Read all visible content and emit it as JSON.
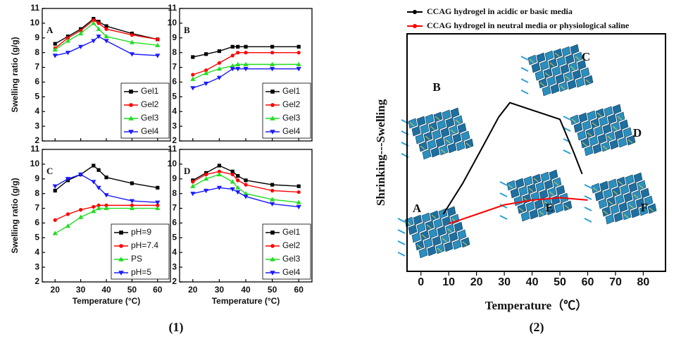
{
  "captions": [
    "(1)",
    "(2)"
  ],
  "chart_data": [
    {
      "type": "line",
      "panel_label": "A",
      "ylabel": "Swelling ratio (g/g)",
      "x": [
        20,
        25,
        30,
        35,
        37,
        40,
        50,
        60
      ],
      "xlim": [
        15,
        65
      ],
      "xticks": [
        20,
        30,
        40,
        50,
        60
      ],
      "xtick_labels": false,
      "ylim": [
        2,
        11
      ],
      "yticks": [
        2,
        3,
        4,
        5,
        6,
        7,
        8,
        9,
        10,
        11
      ],
      "legend": "lower right",
      "series": [
        {
          "name": "Gel1",
          "color": "#000000",
          "marker": "square",
          "values": [
            8.6,
            9.1,
            9.6,
            10.3,
            10.1,
            9.8,
            9.3,
            8.9
          ]
        },
        {
          "name": "Gel2",
          "color": "#ff0000",
          "marker": "circle",
          "values": [
            8.3,
            9.0,
            9.5,
            10.2,
            10.0,
            9.6,
            9.2,
            8.9
          ]
        },
        {
          "name": "Gel3",
          "color": "#22dd22",
          "marker": "triangle-up",
          "values": [
            8.2,
            8.8,
            9.3,
            10.0,
            9.6,
            9.1,
            8.7,
            8.5
          ]
        },
        {
          "name": "Gel4",
          "color": "#1a1aff",
          "marker": "triangle-down",
          "values": [
            7.8,
            8.0,
            8.4,
            8.8,
            9.1,
            8.8,
            7.9,
            7.8
          ]
        }
      ]
    },
    {
      "type": "line",
      "panel_label": "B",
      "x": [
        20,
        25,
        30,
        35,
        37,
        40,
        50,
        60
      ],
      "xlim": [
        15,
        65
      ],
      "xticks": [
        20,
        30,
        40,
        50,
        60
      ],
      "xtick_labels": false,
      "ylim": [
        2,
        11
      ],
      "yticks": [
        2,
        3,
        4,
        5,
        6,
        7,
        8,
        9,
        10,
        11
      ],
      "legend": "lower right",
      "series": [
        {
          "name": "Gel1",
          "color": "#000000",
          "marker": "square",
          "values": [
            7.7,
            7.9,
            8.1,
            8.4,
            8.4,
            8.4,
            8.4,
            8.4
          ]
        },
        {
          "name": "Gel2",
          "color": "#ff0000",
          "marker": "circle",
          "values": [
            6.5,
            6.8,
            7.3,
            7.8,
            8.0,
            8.0,
            8.0,
            8.0
          ]
        },
        {
          "name": "Gel3",
          "color": "#22dd22",
          "marker": "triangle-up",
          "values": [
            6.2,
            6.6,
            6.9,
            7.1,
            7.2,
            7.2,
            7.2,
            7.2
          ]
        },
        {
          "name": "Gel4",
          "color": "#1a1aff",
          "marker": "triangle-down",
          "values": [
            5.6,
            5.9,
            6.3,
            6.9,
            6.9,
            6.9,
            6.9,
            6.9
          ]
        }
      ]
    },
    {
      "type": "line",
      "panel_label": "C",
      "ylabel": "Swelling ratio (g/g)",
      "xlabel": "Temperature (°C)",
      "x": [
        20,
        25,
        30,
        35,
        37,
        40,
        50,
        60
      ],
      "xlim": [
        15,
        65
      ],
      "xticks": [
        20,
        30,
        40,
        50,
        60
      ],
      "ylim": [
        2,
        11
      ],
      "yticks": [
        2,
        3,
        4,
        5,
        6,
        7,
        8,
        9,
        10,
        11
      ],
      "legend": "lower right",
      "series": [
        {
          "name": "pH=9",
          "color": "#000000",
          "marker": "square",
          "values": [
            8.2,
            8.9,
            9.3,
            9.9,
            9.6,
            9.1,
            8.7,
            8.4
          ]
        },
        {
          "name": "pH=7.4",
          "color": "#ff0000",
          "marker": "circle",
          "values": [
            6.2,
            6.6,
            6.9,
            7.1,
            7.2,
            7.2,
            7.2,
            7.2
          ]
        },
        {
          "name": "PS",
          "color": "#22dd22",
          "marker": "triangle-up",
          "values": [
            5.3,
            5.8,
            6.4,
            6.8,
            7.0,
            7.0,
            7.0,
            7.0
          ]
        },
        {
          "name": "pH=5",
          "color": "#1a1aff",
          "marker": "triangle-down",
          "values": [
            8.5,
            9.0,
            9.3,
            8.8,
            8.4,
            7.9,
            7.5,
            7.4
          ]
        }
      ]
    },
    {
      "type": "line",
      "panel_label": "D",
      "xlabel": "Temperature (°C)",
      "x": [
        20,
        25,
        30,
        35,
        37,
        40,
        50,
        60
      ],
      "xlim": [
        15,
        65
      ],
      "xticks": [
        20,
        30,
        40,
        50,
        60
      ],
      "ylim": [
        2,
        11
      ],
      "yticks": [
        2,
        3,
        4,
        5,
        6,
        7,
        8,
        9,
        10,
        11
      ],
      "legend": "lower right",
      "series": [
        {
          "name": "Gel1",
          "color": "#000000",
          "marker": "square",
          "values": [
            8.9,
            9.4,
            9.9,
            9.5,
            9.2,
            8.9,
            8.6,
            8.5
          ]
        },
        {
          "name": "Gel2",
          "color": "#ff0000",
          "marker": "circle",
          "values": [
            8.8,
            9.3,
            9.5,
            9.3,
            8.9,
            8.6,
            8.2,
            8.1
          ]
        },
        {
          "name": "Gel3",
          "color": "#22dd22",
          "marker": "triangle-up",
          "values": [
            8.5,
            9.0,
            9.3,
            8.8,
            8.4,
            8.0,
            7.6,
            7.4
          ]
        },
        {
          "name": "Gel4",
          "color": "#1a1aff",
          "marker": "triangle-down",
          "values": [
            8.0,
            8.2,
            8.4,
            8.3,
            8.1,
            7.8,
            7.3,
            7.1
          ]
        }
      ]
    },
    {
      "type": "schematic",
      "ylabel": "Shrinking---Swelling",
      "xlabel": "Temperature（℃）",
      "xlim": [
        -5,
        88
      ],
      "xticks": [
        0,
        10,
        20,
        30,
        40,
        50,
        60,
        70,
        80
      ],
      "ylim": [
        0,
        100
      ],
      "legend": "above",
      "annotations": [
        "A",
        "B",
        "C",
        "D",
        "E",
        "F"
      ],
      "series": [
        {
          "name": "CCAG hydrogel in acidic or basic media",
          "color": "#000000",
          "x": [
            8,
            15,
            22,
            28,
            32,
            50,
            55,
            58
          ],
          "values": [
            24,
            37,
            52,
            65,
            71,
            64,
            50,
            41
          ]
        },
        {
          "name": "CCAG hydrogel in neutral media or physiological saline",
          "color": "#ff0000",
          "x": [
            10,
            20,
            30,
            40,
            50,
            60
          ],
          "values": [
            20,
            24,
            28,
            30,
            31,
            30
          ]
        }
      ]
    }
  ]
}
